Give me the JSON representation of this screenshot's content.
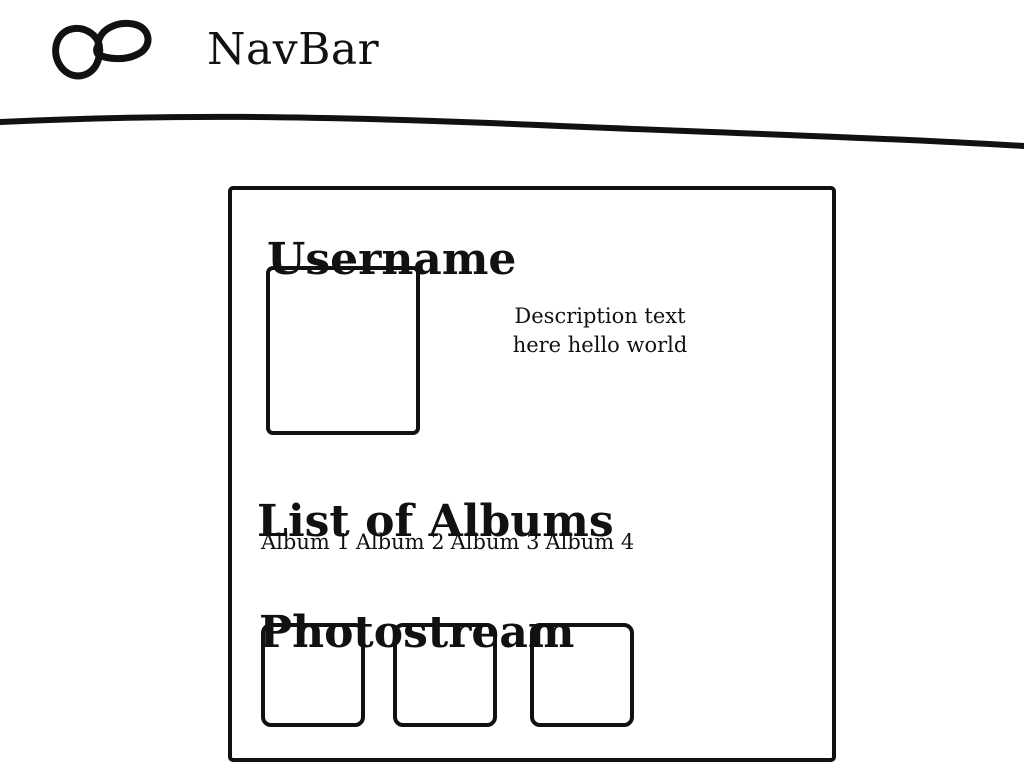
{
  "navbar": {
    "logo_icon": "interlocking-rings-icon",
    "title": "NavBar"
  },
  "profile": {
    "username": "Username",
    "description_line_1": "Description text",
    "description_line_2": "here hello world",
    "albums": {
      "heading": "List of Albums",
      "items": [
        "Album 1",
        "Album 2",
        "Album 3",
        "Album 4"
      ]
    },
    "photostream": {
      "heading": "Photostream",
      "tile_count": 3
    }
  }
}
